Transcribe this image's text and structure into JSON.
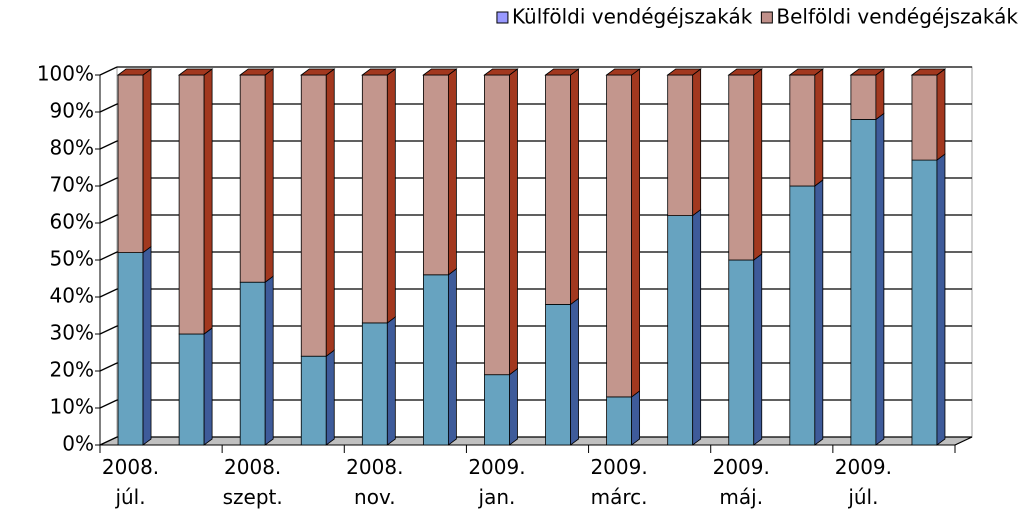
{
  "chart_data": {
    "type": "bar3d_stacked",
    "categories": [
      "2008. júl.",
      null,
      "2008. szept.",
      null,
      "2008. nov.",
      null,
      "2009. jan.",
      null,
      "2009. márc.",
      null,
      "2009. máj.",
      null,
      "2009. júl.",
      null
    ],
    "series": [
      {
        "name": "Külföldi vendégéjszakák",
        "color": "#67a3c0",
        "side_color": "#3e5b9a",
        "legend_color": "#9999ff",
        "values": [
          52,
          30,
          44,
          24,
          33,
          46,
          19,
          38,
          13,
          62,
          50,
          70,
          88,
          77
        ]
      },
      {
        "name": "Belföldi vendégéjszakák",
        "color": "#c3968d",
        "side_color": "#a2381f",
        "legend_color": "#c0908a",
        "values": [
          48,
          70,
          56,
          76,
          67,
          54,
          81,
          62,
          87,
          38,
          50,
          30,
          12,
          23
        ]
      }
    ],
    "ylim": [
      0,
      100
    ],
    "yticks": [
      {
        "value": 0,
        "label": "0%"
      },
      {
        "value": 10,
        "label": "10%"
      },
      {
        "value": 20,
        "label": "20%"
      },
      {
        "value": 30,
        "label": "30%"
      },
      {
        "value": 40,
        "label": "40%"
      },
      {
        "value": 50,
        "label": "50%"
      },
      {
        "value": 60,
        "label": "60%"
      },
      {
        "value": 70,
        "label": "70%"
      },
      {
        "value": 80,
        "label": "80%"
      },
      {
        "value": 90,
        "label": "90%"
      },
      {
        "value": 100,
        "label": "100%"
      }
    ],
    "grid": true,
    "legend": "top-right"
  }
}
